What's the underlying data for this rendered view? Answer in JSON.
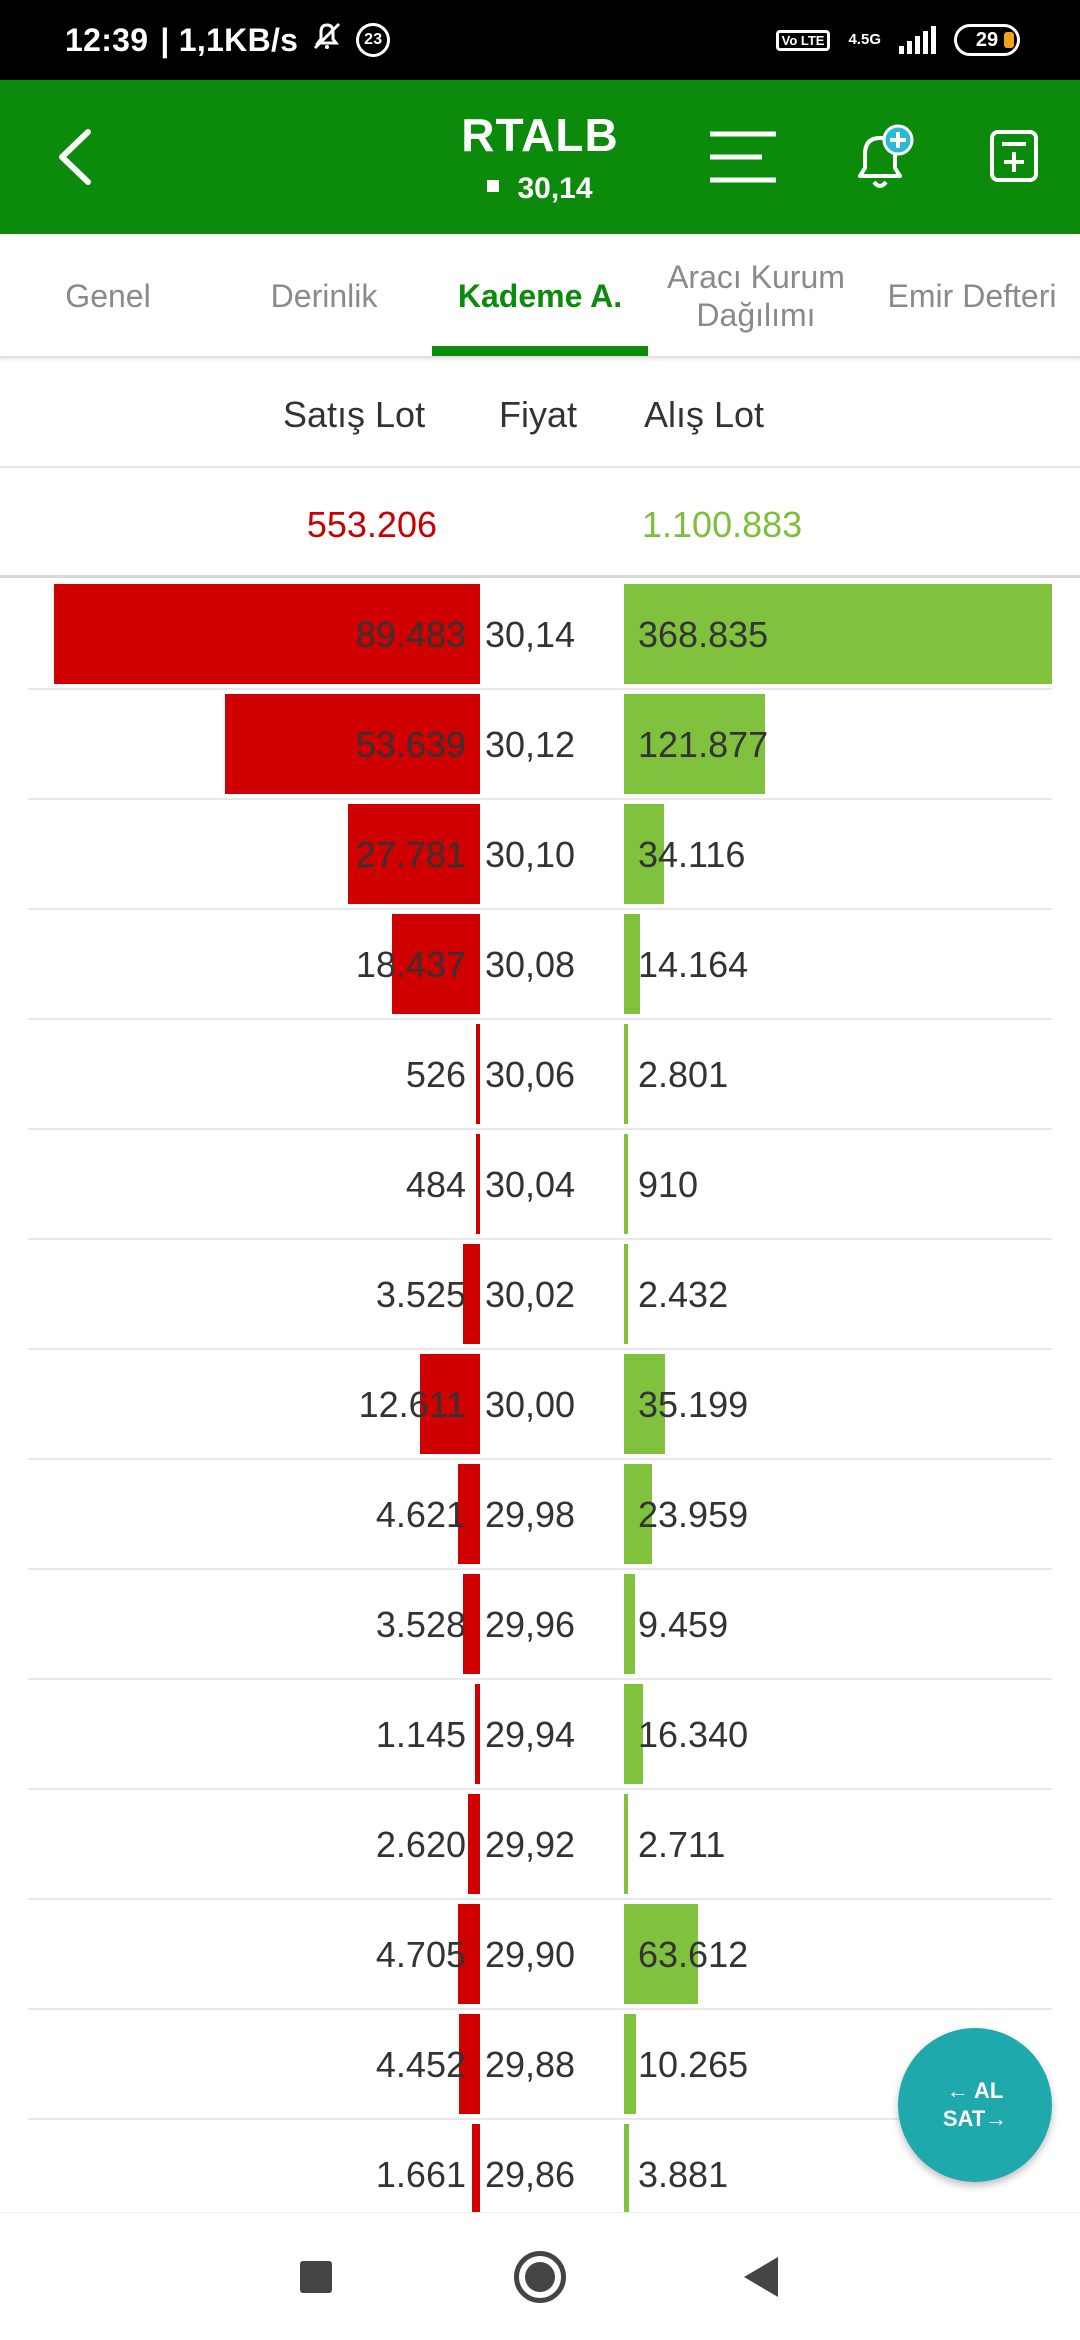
{
  "status_bar": {
    "time": "12:39",
    "net_speed": "| 1,1KB/s",
    "notification_count": "23",
    "volte": "Vo LTE",
    "network": "4.5G",
    "battery": "29"
  },
  "header": {
    "symbol": "RTALB",
    "price": "30,14",
    "icons": [
      "back-arrow-icon",
      "menu-lines-icon",
      "bell-add-icon",
      "add-list-icon"
    ]
  },
  "tabs": [
    {
      "label": "Genel",
      "active": false
    },
    {
      "label": "Derinlik",
      "active": false
    },
    {
      "label": "Kademe A.",
      "active": true
    },
    {
      "label": "Aracı Kurum Dağılımı",
      "active": false
    },
    {
      "label": "Emir Defteri",
      "active": false
    }
  ],
  "columns": {
    "sell": "Satış Lot",
    "price": "Fiyat",
    "buy": "Alış Lot"
  },
  "totals": {
    "sell": "553.206",
    "buy": "1.100.883"
  },
  "colors": {
    "header_green": "#0b8a0b",
    "sell_red": "#d10000",
    "buy_green": "#80c13e",
    "fab_teal": "#1fa9ad"
  },
  "levels": [
    {
      "sell": "89.483",
      "price": "30,14",
      "buy": "368.835",
      "sell_lots": 89483,
      "buy_lots": 368835
    },
    {
      "sell": "53.639",
      "price": "30,12",
      "buy": "121.877",
      "sell_lots": 53639,
      "buy_lots": 121877
    },
    {
      "sell": "27.781",
      "price": "30,10",
      "buy": "34.116",
      "sell_lots": 27781,
      "buy_lots": 34116
    },
    {
      "sell": "18.437",
      "price": "30,08",
      "buy": "14.164",
      "sell_lots": 18437,
      "buy_lots": 14164
    },
    {
      "sell": "526",
      "price": "30,06",
      "buy": "2.801",
      "sell_lots": 526,
      "buy_lots": 2801
    },
    {
      "sell": "484",
      "price": "30,04",
      "buy": "910",
      "sell_lots": 484,
      "buy_lots": 910
    },
    {
      "sell": "3.525",
      "price": "30,02",
      "buy": "2.432",
      "sell_lots": 3525,
      "buy_lots": 2432
    },
    {
      "sell": "12.611",
      "price": "30,00",
      "buy": "35.199",
      "sell_lots": 12611,
      "buy_lots": 35199
    },
    {
      "sell": "4.621",
      "price": "29,98",
      "buy": "23.959",
      "sell_lots": 4621,
      "buy_lots": 23959
    },
    {
      "sell": "3.528",
      "price": "29,96",
      "buy": "9.459",
      "sell_lots": 3528,
      "buy_lots": 9459
    },
    {
      "sell": "1.145",
      "price": "29,94",
      "buy": "16.340",
      "sell_lots": 1145,
      "buy_lots": 16340
    },
    {
      "sell": "2.620",
      "price": "29,92",
      "buy": "2.711",
      "sell_lots": 2620,
      "buy_lots": 2711
    },
    {
      "sell": "4.705",
      "price": "29,90",
      "buy": "63.612",
      "sell_lots": 4705,
      "buy_lots": 63612
    },
    {
      "sell": "4.452",
      "price": "29,88",
      "buy": "10.265",
      "sell_lots": 4452,
      "buy_lots": 10265
    },
    {
      "sell": "1.661",
      "price": "29,86",
      "buy": "3.881",
      "sell_lots": 1661,
      "buy_lots": 3881
    }
  ],
  "fab": {
    "line1": "← AL",
    "line2": "SAT→"
  },
  "navbar": {
    "icons": [
      "recents-square-icon",
      "home-circle-icon",
      "back-triangle-icon"
    ]
  }
}
